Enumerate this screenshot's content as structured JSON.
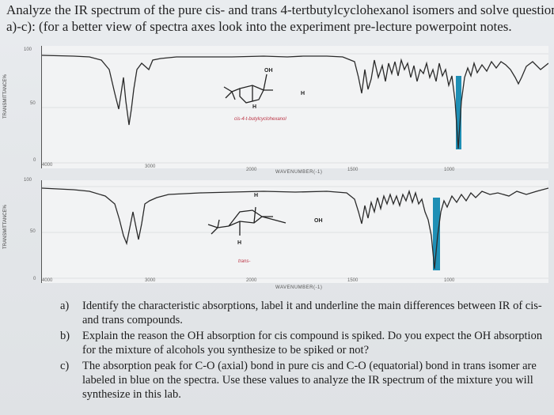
{
  "header": {
    "line1": "Analyze the IR spectrum of the pure cis- and trans 4-tertbutylcyclohexanol isomers and solve question",
    "line2": "a)-c): (for a better view of spectra axes look into the experiment pre-lecture powerpoint notes."
  },
  "spectrum1": {
    "y_top": "100",
    "y_mid": "50",
    "y_zero": "0",
    "y_axis_label": "TRANSMITTANCE%",
    "x_ticks": [
      "4000",
      "3000",
      "2000",
      "1500",
      "1000"
    ],
    "x_axis_label": "WAVENUMBER(-1)",
    "molecule_oh": "OH",
    "molecule_h_right": "H",
    "molecule_h_bottom": "H",
    "compound_label": "cis-4-t-butylcyclohexanol"
  },
  "spectrum2": {
    "y_top": "100",
    "y_mid": "50",
    "y_zero": "0",
    "y_axis_label": "TRANSMITTANCE%",
    "x_ticks": [
      "4000",
      "3000",
      "2000",
      "1500",
      "1000"
    ],
    "x_axis_label": "WAVENUMBER(-1)",
    "molecule_oh": "OH",
    "molecule_h_top": "H",
    "molecule_h_bottom": "H",
    "compound_label": "trans-"
  },
  "questions": [
    {
      "letter": "a)",
      "text": "Identify the characteristic absorptions, label it and underline the main differences between IR of cis- and trans compounds."
    },
    {
      "letter": "b)",
      "text": "Explain the reason the OH absorption for cis compound is spiked. Do you expect the OH absorption for the mixture of alcohols you synthesize to be spiked or not?"
    },
    {
      "letter": "c)",
      "text": "The absorption peak for C-O (axial) bond in pure cis and C-O (equatorial) bond in trans isomer are labeled in blue on the spectra. Use these values to analyze the IR spectrum of the mixture you will synthesize in this lab."
    }
  ],
  "colors": {
    "highlight": "#1f8fb5",
    "trace": "#2a2a2a"
  }
}
